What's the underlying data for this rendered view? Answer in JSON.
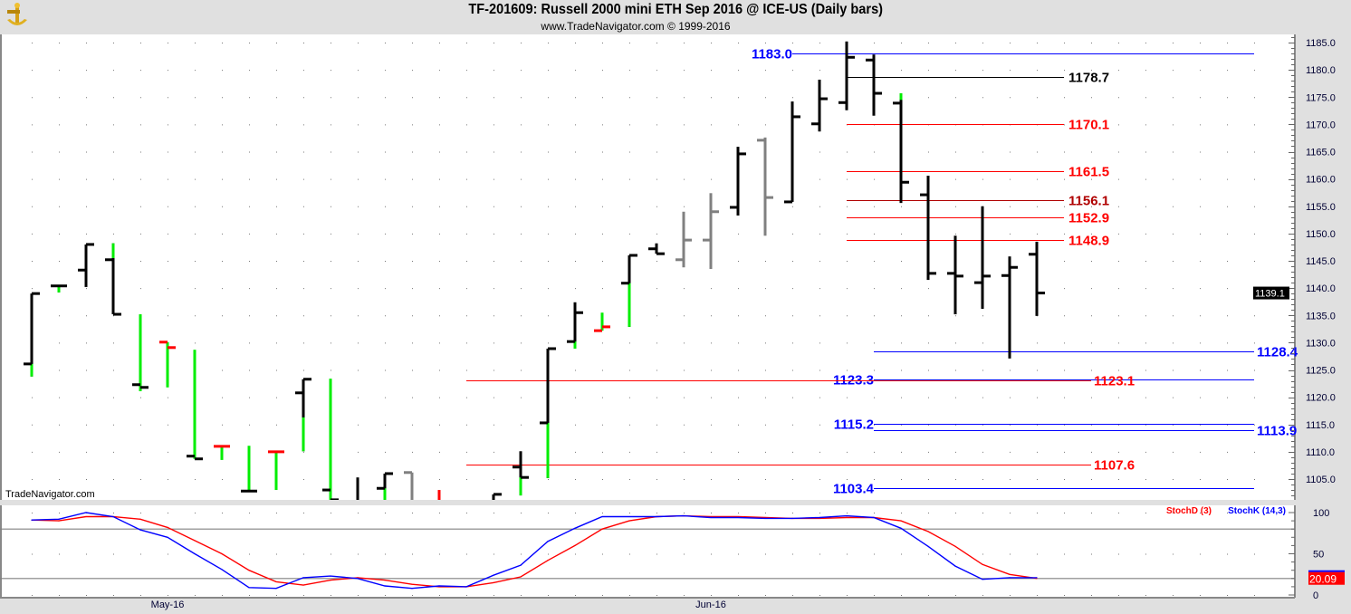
{
  "header": {
    "title": "TF-201609:  Russell 2000 mini ETH Sep 2016 @ ICE-US  (Daily bars)",
    "subtitle": "www.TradeNavigator.com © 1999-2016",
    "watermark": "TradeNavigator.com",
    "logo_icon": "golden-anchor-logo-icon"
  },
  "colors": {
    "black": "#000000",
    "green": "#00ee00",
    "red": "#ff0000",
    "gray": "#808080",
    "blue": "#0000ff",
    "darkred": "#b00000",
    "stochK": "#0000ff",
    "stochD": "#ff0000"
  },
  "chart_data": [
    {
      "type": "ohlc",
      "title": "TF-201609:  Russell 2000 mini ETH Sep 2016 @ ICE-US  (Daily bars)",
      "ylim": [
        1101,
        1186
      ],
      "y_ticks": [
        "1105.0",
        "1110.0",
        "1115.0",
        "1120.0",
        "1125.0",
        "1130.0",
        "1135.0",
        "1140.0",
        "1145.0",
        "1150.0",
        "1155.0",
        "1160.0",
        "1165.0",
        "1170.0",
        "1175.0",
        "1180.0",
        "1185.0"
      ],
      "x_tick_labels": [
        {
          "bar": 5,
          "label": "May-16"
        },
        {
          "bar": 25,
          "label": "Jun-16"
        }
      ],
      "grid": "dotted",
      "last_price": "1139.1",
      "bars": [
        {
          "o": 1126.1,
          "h": 1139.0,
          "l": 1123.8,
          "c": 1139.0,
          "color": "black",
          "green_below": 1126.1
        },
        {
          "o": 1140.4,
          "h": 1140.4,
          "l": 1139.2,
          "c": 1140.4,
          "color": "black",
          "green_below": 1140.4
        },
        {
          "o": 1143.3,
          "h": 1148.0,
          "l": 1140.2,
          "c": 1148.0,
          "color": "black"
        },
        {
          "o": 1145.2,
          "h": 1148.2,
          "l": 1135.2,
          "c": 1135.2,
          "color": "black",
          "green_above": 1145.5
        },
        {
          "o": 1122.3,
          "h": 1135.2,
          "l": 1121.1,
          "c": 1121.8,
          "color": "green",
          "tick": "black"
        },
        {
          "o": 1130.1,
          "h": 1130.1,
          "l": 1121.8,
          "c": 1129.1,
          "color": "green",
          "tick": "red"
        },
        {
          "o": 1109.2,
          "h": 1128.7,
          "l": 1108.7,
          "c": 1108.7,
          "color": "green",
          "tick": "black"
        },
        {
          "o": 1111.0,
          "h": 1111.0,
          "l": 1108.5,
          "c": 1111.0,
          "color": "green",
          "tick": "red"
        },
        {
          "o": 1102.8,
          "h": 1111.1,
          "l": 1102.8,
          "c": 1102.8,
          "color": "green",
          "tick": "black"
        },
        {
          "o": 1110.0,
          "h": 1110.0,
          "l": 1103.0,
          "c": 1110.0,
          "color": "green",
          "tick": "red"
        },
        {
          "o": 1120.8,
          "h": 1123.3,
          "l": 1110.1,
          "c": 1123.3,
          "color": "black",
          "green_below": 1116.3
        },
        {
          "o": 1103.0,
          "h": 1123.4,
          "l": null,
          "c": 1101.2,
          "color": "green",
          "tick": "black"
        },
        {
          "o": null,
          "h": 1105.3,
          "l": null,
          "c": null,
          "color": "black"
        },
        {
          "o": 1103.3,
          "h": 1106.0,
          "l": null,
          "c": 1106.0,
          "color": "black",
          "green_below": 1103.3
        },
        {
          "o": 1106.2,
          "h": 1106.2,
          "l": null,
          "c": null,
          "color": "gray"
        },
        {
          "o": null,
          "h": 1103.0,
          "l": null,
          "c": null,
          "color": "red"
        },
        null,
        {
          "o": null,
          "h": 1102.2,
          "l": null,
          "c": 1102.2,
          "color": "black"
        },
        {
          "o": 1107.2,
          "h": 1110.1,
          "l": 1102.0,
          "c": 1105.3,
          "color": "black",
          "green_below": 1105.3
        },
        {
          "o": 1115.3,
          "h": 1128.9,
          "l": 1105.2,
          "c": 1128.9,
          "color": "black",
          "green_below": 1115.3
        },
        {
          "o": 1130.2,
          "h": 1137.4,
          "l": 1128.9,
          "c": 1135.5,
          "color": "black",
          "green_below": 1130.2
        },
        {
          "o": 1132.2,
          "h": 1135.5,
          "l": 1132.2,
          "c": 1132.9,
          "color": "green",
          "tick": "red"
        },
        {
          "o": 1140.9,
          "h": 1146.0,
          "l": 1132.9,
          "c": 1146.0,
          "color": "black",
          "green_below": 1140.9
        },
        {
          "o": 1147.2,
          "h": 1148.2,
          "l": 1146.3,
          "c": 1146.3,
          "color": "black"
        },
        {
          "o": 1145.2,
          "h": 1154.0,
          "l": 1143.8,
          "c": 1148.8,
          "color": "gray"
        },
        {
          "o": 1148.8,
          "h": 1157.4,
          "l": 1143.5,
          "c": 1154.0,
          "color": "gray"
        },
        {
          "o": 1154.8,
          "h": 1165.9,
          "l": 1153.3,
          "c": 1164.6,
          "color": "black"
        },
        {
          "o": 1167.1,
          "h": 1167.6,
          "l": 1149.6,
          "c": 1156.6,
          "color": "gray"
        },
        {
          "o": 1155.8,
          "h": 1174.2,
          "l": 1155.8,
          "c": 1171.4,
          "color": "black"
        },
        {
          "o": 1170.1,
          "h": 1178.2,
          "l": 1168.7,
          "c": 1174.7,
          "color": "black"
        },
        {
          "o": 1174.0,
          "h": 1185.2,
          "l": 1172.6,
          "c": 1182.3,
          "color": "black"
        },
        {
          "o": 1181.8,
          "h": 1182.8,
          "l": 1171.6,
          "c": 1175.7,
          "color": "black"
        },
        {
          "o": 1173.9,
          "h": 1175.7,
          "l": 1155.6,
          "c": 1159.4,
          "color": "black",
          "green_above": 1174.5
        },
        {
          "o": 1157.1,
          "h": 1160.6,
          "l": 1141.5,
          "c": 1142.7,
          "color": "black"
        },
        {
          "o": 1142.7,
          "h": 1149.6,
          "l": 1135.2,
          "c": 1142.2,
          "color": "black"
        },
        {
          "o": 1141.0,
          "h": 1155.0,
          "l": 1136.2,
          "c": 1142.2,
          "color": "black"
        },
        {
          "o": 1142.3,
          "h": 1145.8,
          "l": 1127.1,
          "c": 1143.8,
          "color": "black"
        },
        {
          "o": 1146.2,
          "h": 1148.5,
          "l": 1134.9,
          "c": 1139.1,
          "color": "black"
        }
      ],
      "levels": [
        {
          "value": 1183.0,
          "label": "1183.0",
          "color": "blue"
        },
        {
          "value": 1178.7,
          "label": "1178.7",
          "color": "black"
        },
        {
          "value": 1170.1,
          "label": "1170.1",
          "color": "red"
        },
        {
          "value": 1161.5,
          "label": "1161.5",
          "color": "red"
        },
        {
          "value": 1156.1,
          "label": "1156.1",
          "color": "darkred"
        },
        {
          "value": 1152.9,
          "label": "1152.9",
          "color": "red"
        },
        {
          "value": 1148.9,
          "label": "1148.9",
          "color": "red"
        },
        {
          "value": 1128.4,
          "label": "1128.4",
          "color": "blue"
        },
        {
          "value": 1123.3,
          "label": "1123.3",
          "color": "blue"
        },
        {
          "value": 1123.1,
          "label": "1123.1",
          "color": "red"
        },
        {
          "value": 1115.2,
          "label": "1115.2",
          "color": "blue"
        },
        {
          "value": 1113.9,
          "label": "1113.9",
          "color": "blue"
        },
        {
          "value": 1107.6,
          "label": "1107.6",
          "color": "red"
        },
        {
          "value": 1103.4,
          "label": "1103.4",
          "color": "blue"
        }
      ]
    },
    {
      "type": "line",
      "ylim": [
        0,
        100
      ],
      "y_ticks": [
        "0",
        "50",
        "100"
      ],
      "reference_lines": [
        20,
        80
      ],
      "legend": "top-right",
      "last_value": "20.09",
      "series": [
        {
          "name": "StochD (3)",
          "color": "stochD",
          "values": [
            91,
            90,
            95,
            95,
            92,
            82,
            66,
            50,
            30,
            16,
            12,
            18,
            21,
            18,
            13,
            10,
            10,
            15,
            22,
            42,
            60,
            80,
            90,
            95,
            96,
            95,
            95,
            94,
            93,
            93,
            94,
            94,
            90,
            77,
            59,
            37,
            25,
            20.09
          ]
        },
        {
          "name": "StochK (14,3)",
          "color": "stochK",
          "values": [
            91,
            92,
            100,
            95,
            79,
            70,
            50,
            31,
            9,
            8,
            21,
            23,
            20,
            11,
            8,
            11,
            10,
            24,
            36,
            65,
            81,
            95,
            95,
            95,
            96,
            94,
            94,
            93,
            93,
            94,
            96,
            94,
            81,
            59,
            35,
            19,
            21,
            21
          ]
        }
      ]
    }
  ]
}
